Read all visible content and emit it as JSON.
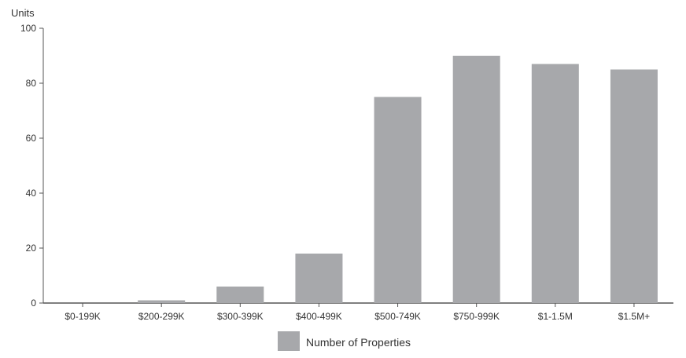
{
  "chart_data": {
    "type": "bar",
    "ylabel": "Units",
    "xlabel": "",
    "title": "",
    "ylim": [
      0,
      100
    ],
    "yticks": [
      0,
      20,
      40,
      60,
      80,
      100
    ],
    "categories": [
      "$0-199K",
      "$200-299K",
      "$300-399K",
      "$400-499K",
      "$500-749K",
      "$750-999K",
      "$1-1.5M",
      "$1.5M+"
    ],
    "series": [
      {
        "name": "Number of Properties",
        "color": "#a7a8ab",
        "values": [
          0,
          1,
          6,
          18,
          75,
          90,
          87,
          85
        ]
      }
    ],
    "grid": false,
    "legend": "bottom-center"
  }
}
